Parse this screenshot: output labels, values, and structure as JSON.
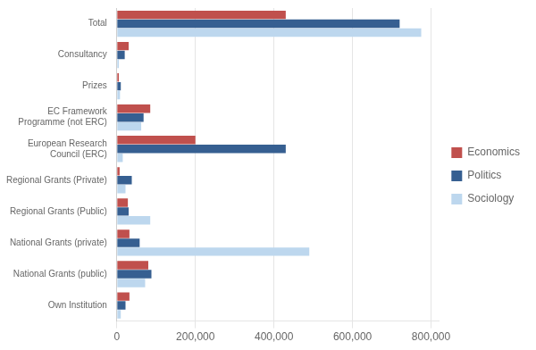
{
  "chart_data": {
    "type": "bar",
    "orientation": "horizontal",
    "categories": [
      "Total",
      "Consultancy",
      "Prizes",
      "EC Framework\nProgramme (not ERC)",
      "European Research\nCouncil (ERC)",
      "Regional Grants (Private)",
      "Regional Grants (Public)",
      "National Grants (private)",
      "National Grants (public)",
      "Own Institution"
    ],
    "series": [
      {
        "name": "Economics",
        "color": "#c0504d",
        "values": [
          430000,
          30000,
          5000,
          85000,
          200000,
          7000,
          28000,
          32000,
          80000,
          32000
        ]
      },
      {
        "name": "Politics",
        "color": "#365f91",
        "values": [
          720000,
          20000,
          10000,
          68000,
          430000,
          38000,
          30000,
          58000,
          88000,
          22000
        ]
      },
      {
        "name": "Sociology",
        "color": "#bdd7ee",
        "values": [
          775000,
          5000,
          8000,
          62000,
          15000,
          22000,
          85000,
          490000,
          72000,
          10000
        ]
      }
    ],
    "xlim": [
      0,
      820000
    ],
    "xticks": [
      0,
      {
        "value": 200000,
        "label": "200,000"
      },
      {
        "value": 400000,
        "label": "400,000"
      },
      {
        "value": 600000,
        "label": "600,000"
      },
      {
        "value": 800000,
        "label": "800,000"
      }
    ],
    "grid": true,
    "legend": "right"
  }
}
